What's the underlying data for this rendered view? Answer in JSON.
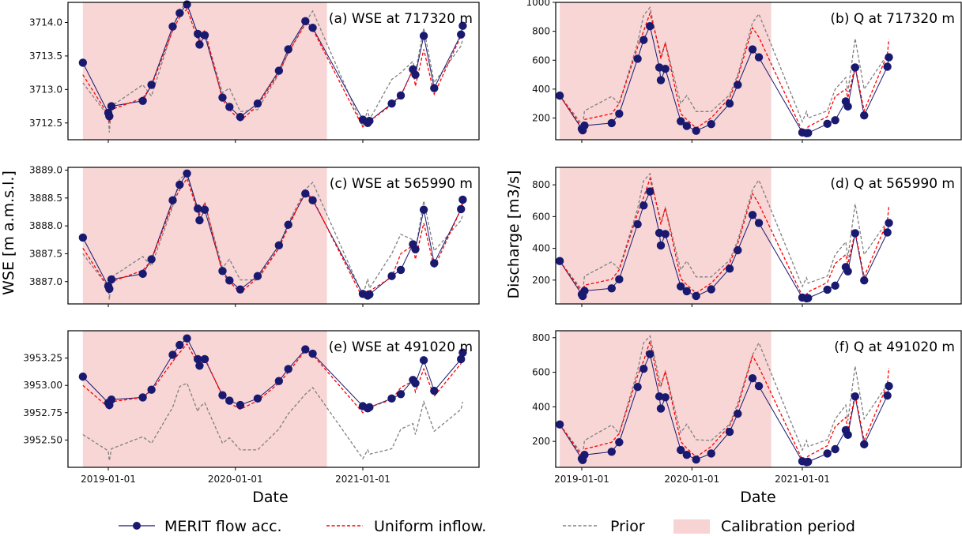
{
  "colors": {
    "merit": "#191970",
    "uniform": "#ff0000",
    "prior": "#808080",
    "calibration": "#f5c0c0"
  },
  "legend": {
    "items": [
      {
        "key": "merit",
        "label": "MERIT flow acc."
      },
      {
        "key": "uniform",
        "label": "Uniform inflow."
      },
      {
        "key": "prior",
        "label": "Prior"
      },
      {
        "key": "calibration",
        "label": "Calibration period"
      }
    ]
  },
  "shared": {
    "left_ylabel": "WSE [m a.m.s.l.]",
    "right_ylabel": "Discharge [m3/s]",
    "xlabel": "Date",
    "x_ticks": [
      "2019-01-01",
      "2020-01-01",
      "2021-01-01"
    ],
    "calibration_period": [
      "2018-10-20",
      "2020-09-20"
    ]
  },
  "chart_data": [
    {
      "type": "line",
      "title": "(a) WSE at 717320 m",
      "ylabel": "WSE [m a.m.s.l.]",
      "xlabel": "",
      "ylim": [
        3712.25,
        3714.3
      ],
      "yticks": [
        "3712.5",
        "3713.0",
        "3713.5",
        "3714.0"
      ],
      "ytick_values": [
        3712.5,
        3713.0,
        3713.5,
        3714.0
      ],
      "x": [
        "2018-10-20",
        "2019-01-01",
        "2019-01-04",
        "2019-01-10",
        "2019-04-10",
        "2019-05-05",
        "2019-07-05",
        "2019-07-25",
        "2019-08-15",
        "2019-09-15",
        "2019-09-20",
        "2019-10-05",
        "2019-11-25",
        "2019-12-15",
        "2020-01-15",
        "2020-03-05",
        "2020-05-05",
        "2020-06-01",
        "2020-07-20",
        "2020-08-10",
        "2021-01-01",
        "2021-01-15",
        "2021-01-20",
        "2021-03-25",
        "2021-04-20",
        "2021-05-25",
        "2021-06-01",
        "2021-06-25",
        "2021-07-25",
        "2021-10-10",
        "2021-10-15"
      ],
      "series": [
        {
          "name": "MERIT flow acc.",
          "values": [
            3713.4,
            3712.65,
            3712.6,
            3712.75,
            3712.83,
            3713.07,
            3713.94,
            3714.14,
            3714.27,
            3713.83,
            3713.67,
            3713.81,
            3712.88,
            3712.74,
            3712.59,
            3712.79,
            3713.28,
            3713.6,
            3714.02,
            3713.92,
            3712.55,
            3712.5,
            3712.53,
            3712.79,
            3712.91,
            3713.3,
            3713.22,
            3713.8,
            3713.02,
            3713.82,
            3713.95
          ]
        },
        {
          "name": "Uniform inflow.",
          "values": [
            3713.22,
            3712.62,
            3712.5,
            3712.7,
            3712.87,
            3713.05,
            3713.88,
            3714.08,
            3714.2,
            3713.75,
            3713.72,
            3713.89,
            3712.85,
            3712.7,
            3712.53,
            3712.76,
            3713.25,
            3713.55,
            3713.98,
            3713.9,
            3712.44,
            3712.5,
            3712.53,
            3712.77,
            3712.9,
            3713.3,
            3713.05,
            3713.6,
            3712.93,
            3713.8,
            3713.9
          ]
        },
        {
          "name": "Prior",
          "values": [
            3713.1,
            3712.6,
            3712.36,
            3712.75,
            3713.07,
            3712.9,
            3713.9,
            3714.2,
            3714.27,
            3713.83,
            3713.75,
            3713.85,
            3712.95,
            3713.02,
            3712.67,
            3712.7,
            3713.23,
            3713.55,
            3714.0,
            3714.17,
            3712.45,
            3712.7,
            3712.55,
            3713.15,
            3713.25,
            3713.42,
            3713.25,
            3713.92,
            3713.1,
            3713.65,
            3713.75
          ]
        }
      ]
    },
    {
      "type": "line",
      "title": "(b) Q at 717320 m",
      "ylabel": "Discharge [m3/s]",
      "xlabel": "",
      "ylim": [
        50,
        1000
      ],
      "yticks": [
        "200",
        "400",
        "600",
        "800",
        "1000"
      ],
      "ytick_values": [
        200,
        400,
        600,
        800,
        1000
      ],
      "x": [
        "2018-10-20",
        "2019-01-01",
        "2019-01-04",
        "2019-01-10",
        "2019-04-10",
        "2019-05-05",
        "2019-07-05",
        "2019-07-25",
        "2019-08-15",
        "2019-09-15",
        "2019-09-20",
        "2019-10-05",
        "2019-11-25",
        "2019-12-15",
        "2020-01-15",
        "2020-03-05",
        "2020-05-05",
        "2020-06-01",
        "2020-07-20",
        "2020-08-10",
        "2021-01-01",
        "2021-01-15",
        "2021-01-20",
        "2021-03-25",
        "2021-04-20",
        "2021-05-25",
        "2021-06-01",
        "2021-06-25",
        "2021-07-25",
        "2021-10-10",
        "2021-10-15"
      ],
      "series": [
        {
          "name": "MERIT flow acc.",
          "values": [
            355,
            125,
            115,
            148,
            165,
            230,
            610,
            740,
            835,
            550,
            462,
            540,
            178,
            145,
            112,
            158,
            300,
            430,
            675,
            620,
            100,
            95,
            97,
            160,
            185,
            315,
            280,
            550,
            218,
            555,
            620
          ]
        },
        {
          "name": "Uniform inflow.",
          "values": [
            355,
            140,
            120,
            190,
            230,
            300,
            690,
            800,
            925,
            680,
            610,
            720,
            230,
            190,
            130,
            200,
            340,
            480,
            825,
            760,
            110,
            120,
            140,
            210,
            350,
            400,
            340,
            560,
            250,
            640,
            745
          ]
        },
        {
          "name": "Prior",
          "values": [
            355,
            160,
            140,
            250,
            350,
            300,
            720,
            910,
            965,
            660,
            620,
            720,
            300,
            355,
            245,
            245,
            360,
            500,
            860,
            920,
            175,
            245,
            200,
            250,
            400,
            480,
            380,
            750,
            400,
            640,
            620
          ]
        }
      ]
    },
    {
      "type": "line",
      "title": "(c) WSE at 565990 m",
      "ylabel": "WSE [m a.m.s.l.]",
      "xlabel": "",
      "ylim": [
        3886.6,
        3889.05
      ],
      "yticks": [
        "3887.0",
        "3887.5",
        "3888.0",
        "3888.5",
        "3889.0"
      ],
      "ytick_values": [
        3887.0,
        3887.5,
        3888.0,
        3888.5,
        3889.0
      ],
      "x": [
        "2018-10-20",
        "2019-01-01",
        "2019-01-04",
        "2019-01-10",
        "2019-04-10",
        "2019-05-05",
        "2019-07-05",
        "2019-07-25",
        "2019-08-15",
        "2019-09-15",
        "2019-09-20",
        "2019-10-05",
        "2019-11-25",
        "2019-12-15",
        "2020-01-15",
        "2020-03-05",
        "2020-05-05",
        "2020-06-01",
        "2020-07-20",
        "2020-08-10",
        "2021-01-01",
        "2021-01-15",
        "2021-01-20",
        "2021-03-25",
        "2021-04-20",
        "2021-05-25",
        "2021-06-01",
        "2021-06-25",
        "2021-07-25",
        "2021-10-10",
        "2021-10-15"
      ],
      "series": [
        {
          "name": "MERIT flow acc.",
          "values": [
            3887.79,
            3886.92,
            3886.87,
            3887.04,
            3887.14,
            3887.4,
            3888.46,
            3888.74,
            3888.94,
            3888.31,
            3888.1,
            3888.29,
            3887.19,
            3887.02,
            3886.86,
            3887.1,
            3887.65,
            3888.02,
            3888.58,
            3888.46,
            3886.78,
            3886.75,
            3886.77,
            3887.1,
            3887.21,
            3887.67,
            3887.58,
            3888.29,
            3887.33,
            3888.3,
            3888.47
          ]
        },
        {
          "name": "Uniform inflow.",
          "values": [
            3887.6,
            3886.9,
            3886.8,
            3887.0,
            3887.2,
            3887.38,
            3888.4,
            3888.65,
            3888.85,
            3888.25,
            3888.2,
            3888.42,
            3887.15,
            3887.0,
            3886.8,
            3887.07,
            3887.6,
            3887.98,
            3888.62,
            3888.48,
            3886.7,
            3886.85,
            3886.83,
            3887.08,
            3887.5,
            3887.65,
            3887.4,
            3888.05,
            3887.25,
            3888.3,
            3888.4
          ]
        },
        {
          "name": "Prior",
          "values": [
            3887.5,
            3886.9,
            3886.68,
            3887.08,
            3887.45,
            3887.28,
            3888.35,
            3888.85,
            3888.92,
            3888.28,
            3888.22,
            3888.4,
            3887.25,
            3887.4,
            3887.03,
            3887.03,
            3887.6,
            3888.05,
            3888.65,
            3888.78,
            3886.75,
            3887.05,
            3886.88,
            3887.5,
            3887.85,
            3887.75,
            3887.55,
            3888.45,
            3887.55,
            3888.1,
            3888.2
          ]
        }
      ]
    },
    {
      "type": "line",
      "title": "(d) Q at 565990 m",
      "ylabel": "Discharge [m3/s]",
      "xlabel": "",
      "ylim": [
        50,
        910
      ],
      "yticks": [
        "200",
        "400",
        "600",
        "800"
      ],
      "ytick_values": [
        200,
        400,
        600,
        800
      ],
      "x": [
        "2018-10-20",
        "2019-01-01",
        "2019-01-04",
        "2019-01-10",
        "2019-04-10",
        "2019-05-05",
        "2019-07-05",
        "2019-07-25",
        "2019-08-15",
        "2019-09-15",
        "2019-09-20",
        "2019-10-05",
        "2019-11-25",
        "2019-12-15",
        "2020-01-15",
        "2020-03-05",
        "2020-05-05",
        "2020-06-01",
        "2020-07-20",
        "2020-08-10",
        "2021-01-01",
        "2021-01-15",
        "2021-01-20",
        "2021-03-25",
        "2021-04-20",
        "2021-05-25",
        "2021-06-01",
        "2021-06-25",
        "2021-07-25",
        "2021-10-10",
        "2021-10-15"
      ],
      "series": [
        {
          "name": "MERIT flow acc.",
          "values": [
            320,
            110,
            100,
            132,
            148,
            205,
            552,
            670,
            758,
            497,
            418,
            490,
            160,
            130,
            100,
            142,
            272,
            388,
            610,
            560,
            90,
            85,
            87,
            140,
            165,
            282,
            255,
            495,
            198,
            500,
            560
          ]
        },
        {
          "name": "Uniform inflow.",
          "values": [
            320,
            125,
            110,
            168,
            205,
            265,
            620,
            720,
            840,
            610,
            550,
            655,
            210,
            170,
            118,
            180,
            305,
            430,
            745,
            680,
            100,
            110,
            125,
            185,
            305,
            360,
            300,
            505,
            220,
            570,
            670
          ]
        },
        {
          "name": "Prior",
          "values": [
            320,
            140,
            125,
            225,
            315,
            270,
            650,
            825,
            870,
            595,
            560,
            655,
            265,
            320,
            220,
            220,
            325,
            450,
            770,
            830,
            160,
            215,
            180,
            225,
            360,
            440,
            340,
            680,
            360,
            570,
            560
          ]
        }
      ]
    },
    {
      "type": "line",
      "title": "(e) WSE at 491020 m",
      "ylabel": "WSE [m a.m.s.l.]",
      "xlabel": "Date",
      "ylim": [
        3952.25,
        3953.5
      ],
      "yticks": [
        "3952.50",
        "3952.75",
        "3953.00",
        "3953.25"
      ],
      "ytick_values": [
        3952.5,
        3952.75,
        3953.0,
        3953.25
      ],
      "x": [
        "2018-10-20",
        "2019-01-01",
        "2019-01-04",
        "2019-01-10",
        "2019-04-10",
        "2019-05-05",
        "2019-07-05",
        "2019-07-25",
        "2019-08-15",
        "2019-09-15",
        "2019-09-20",
        "2019-10-05",
        "2019-11-25",
        "2019-12-15",
        "2020-01-15",
        "2020-03-05",
        "2020-05-05",
        "2020-06-01",
        "2020-07-20",
        "2020-08-10",
        "2021-01-01",
        "2021-01-15",
        "2021-01-20",
        "2021-03-25",
        "2021-04-20",
        "2021-05-25",
        "2021-06-01",
        "2021-06-25",
        "2021-07-25",
        "2021-10-10",
        "2021-10-15"
      ],
      "series": [
        {
          "name": "MERIT flow acc.",
          "values": [
            3953.08,
            3952.84,
            3952.82,
            3952.87,
            3952.89,
            3952.96,
            3953.28,
            3953.37,
            3953.43,
            3953.24,
            3953.18,
            3953.24,
            3952.91,
            3952.86,
            3952.82,
            3952.88,
            3953.04,
            3953.15,
            3953.33,
            3953.29,
            3952.81,
            3952.79,
            3952.8,
            3952.88,
            3952.92,
            3953.05,
            3953.02,
            3953.23,
            3952.95,
            3953.24,
            3953.3
          ]
        },
        {
          "name": "Uniform inflow.",
          "values": [
            3953.0,
            3952.8,
            3952.78,
            3952.85,
            3952.89,
            3952.95,
            3953.22,
            3953.3,
            3953.38,
            3953.2,
            3953.18,
            3953.25,
            3952.9,
            3952.84,
            3952.78,
            3952.86,
            3953.02,
            3953.12,
            3953.32,
            3953.28,
            3952.75,
            3952.79,
            3952.8,
            3952.87,
            3952.98,
            3953.04,
            3952.94,
            3953.15,
            3952.9,
            3953.2,
            3953.28
          ]
        },
        {
          "name": "Prior",
          "values": [
            3952.55,
            3952.4,
            3952.31,
            3952.42,
            3952.53,
            3952.47,
            3952.8,
            3952.99,
            3953.02,
            3952.76,
            3952.8,
            3952.84,
            3952.47,
            3952.52,
            3952.41,
            3952.41,
            3952.6,
            3952.74,
            3952.92,
            3952.98,
            3952.33,
            3952.41,
            3952.37,
            3952.42,
            3952.6,
            3952.65,
            3952.55,
            3952.85,
            3952.58,
            3952.78,
            3952.85
          ]
        }
      ]
    },
    {
      "type": "line",
      "title": "(f) Q at 491020 m",
      "ylabel": "Discharge [m3/s]",
      "xlabel": "Date",
      "ylim": [
        50,
        840
      ],
      "yticks": [
        "200",
        "400",
        "600",
        "800"
      ],
      "ytick_values": [
        200,
        400,
        600,
        800
      ],
      "x": [
        "2018-10-20",
        "2019-01-01",
        "2019-01-04",
        "2019-01-10",
        "2019-04-10",
        "2019-05-05",
        "2019-07-05",
        "2019-07-25",
        "2019-08-15",
        "2019-09-15",
        "2019-09-20",
        "2019-10-05",
        "2019-11-25",
        "2019-12-15",
        "2020-01-15",
        "2020-03-05",
        "2020-05-05",
        "2020-06-01",
        "2020-07-20",
        "2020-08-10",
        "2021-01-01",
        "2021-01-15",
        "2021-01-20",
        "2021-03-25",
        "2021-04-20",
        "2021-05-25",
        "2021-06-01",
        "2021-06-25",
        "2021-07-25",
        "2021-10-10",
        "2021-10-15"
      ],
      "series": [
        {
          "name": "MERIT flow acc.",
          "values": [
            298,
            100,
            92,
            122,
            140,
            195,
            515,
            620,
            705,
            460,
            390,
            455,
            150,
            122,
            95,
            130,
            255,
            360,
            565,
            520,
            85,
            80,
            82,
            130,
            155,
            265,
            238,
            460,
            183,
            465,
            520
          ]
        },
        {
          "name": "Uniform inflow.",
          "values": [
            298,
            115,
            100,
            155,
            195,
            245,
            580,
            665,
            780,
            520,
            520,
            605,
            200,
            160,
            110,
            170,
            290,
            400,
            695,
            630,
            95,
            102,
            115,
            175,
            285,
            340,
            265,
            470,
            205,
            530,
            625
          ]
        },
        {
          "name": "Prior",
          "values": [
            298,
            130,
            115,
            205,
            295,
            245,
            610,
            770,
            810,
            560,
            520,
            605,
            250,
            300,
            210,
            205,
            300,
            420,
            700,
            770,
            150,
            205,
            170,
            210,
            330,
            410,
            320,
            635,
            330,
            530,
            520
          ]
        }
      ]
    }
  ]
}
